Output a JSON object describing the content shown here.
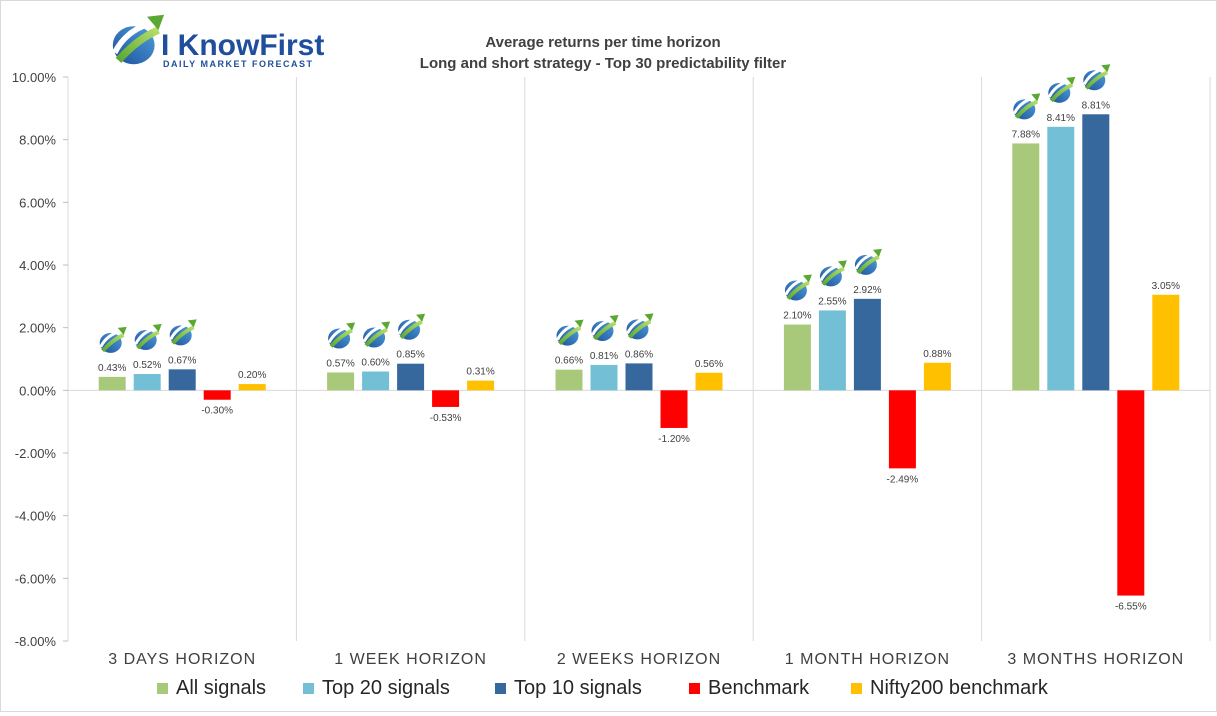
{
  "logo": {
    "name": "I KnowFirst",
    "tagline": "Daily Market Forecast"
  },
  "chart_data": {
    "type": "bar",
    "title": "Average returns per time horizon",
    "subtitle": "Long and short strategy - Top 30 predictability filter",
    "xlabel": "",
    "ylabel": "",
    "categories": [
      "3 DAYS HORIZON",
      "1 WEEK HORIZON",
      "2 WEEKS HORIZON",
      "1 MONTH HORIZON",
      "3 MONTHS HORIZON"
    ],
    "series": [
      {
        "name": "All signals",
        "color": "#a9c97a",
        "values": [
          0.43,
          0.57,
          0.66,
          2.1,
          7.88
        ],
        "labels": [
          "0.43%",
          "0.57%",
          "0.66%",
          "2.10%",
          "7.88%"
        ]
      },
      {
        "name": "Top 20 signals",
        "color": "#72bfd6",
        "values": [
          0.52,
          0.6,
          0.81,
          2.55,
          8.41
        ],
        "labels": [
          "0.52%",
          "0.60%",
          "0.81%",
          "2.55%",
          "8.41%"
        ]
      },
      {
        "name": "Top 10 signals",
        "color": "#36679d",
        "values": [
          0.67,
          0.85,
          0.86,
          2.92,
          8.81
        ],
        "labels": [
          "0.67%",
          "0.85%",
          "0.86%",
          "2.92%",
          "8.81%"
        ]
      },
      {
        "name": "Benchmark",
        "color": "#ff0000",
        "values": [
          -0.3,
          -0.53,
          -1.2,
          -2.49,
          -6.55
        ],
        "labels": [
          "-0.30%",
          "-0.53%",
          "-1.20%",
          "-2.49%",
          "-6.55%"
        ]
      },
      {
        "name": "Nifty200 benchmark",
        "color": "#ffc000",
        "values": [
          0.2,
          0.31,
          0.56,
          0.88,
          3.05
        ],
        "labels": [
          "0.20%",
          "0.31%",
          "0.56%",
          "0.88%",
          "3.05%"
        ]
      }
    ],
    "ylim": [
      -8,
      10
    ],
    "yticks": [
      -8,
      -6,
      -4,
      -2,
      0,
      2,
      4,
      6,
      8,
      10
    ],
    "ytick_labels": [
      "-8.00%",
      "-6.00%",
      "-4.00%",
      "-2.00%",
      "0.00%",
      "2.00%",
      "4.00%",
      "6.00%",
      "8.00%",
      "10.00%"
    ],
    "grid": "vertical separators between categories",
    "legend": "bottom",
    "logo_markers_on_series": [
      "All signals",
      "Top 20 signals",
      "Top 10 signals"
    ]
  }
}
